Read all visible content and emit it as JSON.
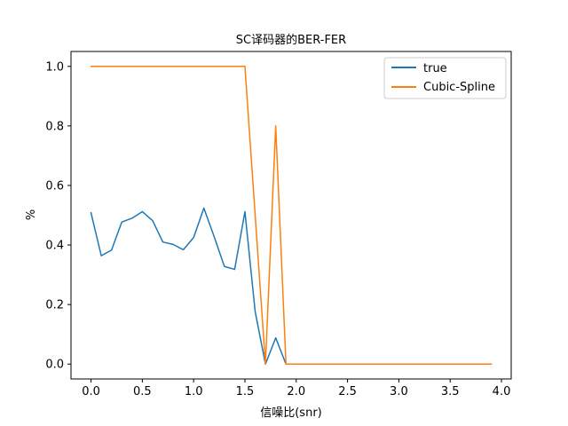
{
  "chart_data": {
    "type": "line",
    "title": "SC译码器的BER-FER",
    "xlabel": "信噪比(snr)",
    "ylabel": "%",
    "xlim": [
      -0.195,
      4.095
    ],
    "ylim": [
      -0.05,
      1.05
    ],
    "xticks": [
      0.0,
      0.5,
      1.0,
      1.5,
      2.0,
      2.5,
      3.0,
      3.5,
      4.0
    ],
    "xtick_labels": [
      "0.0",
      "0.5",
      "1.0",
      "1.5",
      "2.0",
      "2.5",
      "3.0",
      "3.5",
      "4.0"
    ],
    "yticks": [
      0.0,
      0.2,
      0.4,
      0.6,
      0.8,
      1.0
    ],
    "ytick_labels": [
      "0.0",
      "0.2",
      "0.4",
      "0.6",
      "0.8",
      "1.0"
    ],
    "grid": false,
    "legend_position": "upper right",
    "x": [
      0.0,
      0.1,
      0.2,
      0.3,
      0.4,
      0.5,
      0.6,
      0.7,
      0.8,
      0.9,
      1.0,
      1.1,
      1.2,
      1.3,
      1.4,
      1.5,
      1.6,
      1.7,
      1.8,
      1.9,
      2.0,
      2.1,
      2.2,
      2.3,
      2.4,
      2.5,
      2.6,
      2.7,
      2.8,
      2.9,
      3.0,
      3.1,
      3.2,
      3.3,
      3.4,
      3.5,
      3.6,
      3.7,
      3.8,
      3.9
    ],
    "series": [
      {
        "name": "true",
        "color": "#1f77b4",
        "values": [
          0.508,
          0.364,
          0.383,
          0.477,
          0.49,
          0.512,
          0.482,
          0.41,
          0.402,
          0.384,
          0.425,
          0.524,
          0.428,
          0.328,
          0.318,
          0.512,
          0.176,
          0.0,
          0.088,
          0.0,
          0.0,
          0.0,
          0.0,
          0.0,
          0.0,
          0.0,
          0.0,
          0.0,
          0.0,
          0.0,
          0.0,
          0.0,
          0.0,
          0.0,
          0.0,
          0.0,
          0.0,
          0.0,
          0.0,
          0.0
        ]
      },
      {
        "name": "Cubic-Spline",
        "color": "#ff7f0e",
        "values": [
          1.0,
          1.0,
          1.0,
          1.0,
          1.0,
          1.0,
          1.0,
          1.0,
          1.0,
          1.0,
          1.0,
          1.0,
          1.0,
          1.0,
          1.0,
          1.0,
          0.5,
          0.0,
          0.8,
          0.0,
          0.0,
          0.0,
          0.0,
          0.0,
          0.0,
          0.0,
          0.0,
          0.0,
          0.0,
          0.0,
          0.0,
          0.0,
          0.0,
          0.0,
          0.0,
          0.0,
          0.0,
          0.0,
          0.0,
          0.0
        ]
      }
    ]
  }
}
